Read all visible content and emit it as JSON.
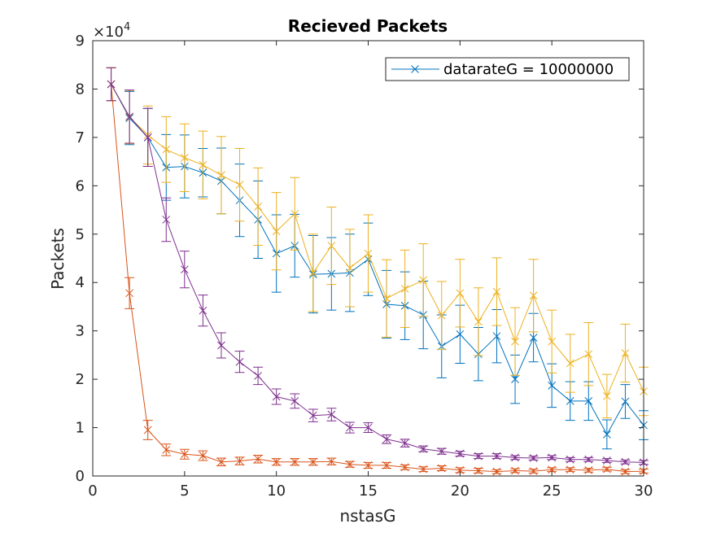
{
  "chart_data": {
    "type": "line",
    "title": "Recieved Packets",
    "xlabel": "nstasG",
    "ylabel": "Packets",
    "xlim": [
      0,
      30
    ],
    "ylim": [
      0,
      90000
    ],
    "xticks": [
      0,
      5,
      10,
      15,
      20,
      25,
      30
    ],
    "yticks": [
      0,
      10000,
      20000,
      30000,
      40000,
      50000,
      60000,
      70000,
      80000,
      90000
    ],
    "ytick_labels": [
      "0",
      "1",
      "2",
      "3",
      "4",
      "5",
      "6",
      "7",
      "8",
      "9"
    ],
    "y_exponent_label": "×10",
    "y_exponent_power": "4",
    "grid": false,
    "legend": {
      "placement": "top-right",
      "entries": [
        "datarateG = 10000000"
      ]
    },
    "x": [
      1,
      2,
      3,
      4,
      5,
      6,
      7,
      8,
      9,
      10,
      11,
      12,
      13,
      14,
      15,
      16,
      17,
      18,
      19,
      20,
      21,
      22,
      23,
      24,
      25,
      26,
      27,
      28,
      29,
      30
    ],
    "series": [
      {
        "name": "datarateG = 10000000",
        "color": "#0072BD",
        "values": [
          81000,
          74000,
          70000,
          63800,
          64000,
          62700,
          61000,
          57000,
          53000,
          46000,
          47600,
          41700,
          41800,
          42000,
          44800,
          35500,
          35200,
          33300,
          26800,
          29300,
          25200,
          28900,
          20000,
          28600,
          18700,
          15500,
          15500,
          8600,
          15400,
          10500
        ],
        "errors": [
          3400,
          5500,
          6000,
          6800,
          6500,
          5000,
          6800,
          7500,
          8000,
          8000,
          6500,
          8000,
          7500,
          8000,
          7500,
          7000,
          7000,
          7000,
          6500,
          6000,
          5500,
          5500,
          5000,
          5000,
          4500,
          4000,
          4000,
          3000,
          3500,
          3000
        ]
      },
      {
        "name": "",
        "color": "#D95319",
        "values": [
          81000,
          37800,
          9500,
          5400,
          4500,
          4200,
          2900,
          3100,
          3500,
          2900,
          2900,
          2900,
          3000,
          2400,
          2200,
          2200,
          1800,
          1400,
          1600,
          1200,
          1100,
          900,
          1100,
          1000,
          1300,
          1300,
          1200,
          1400,
          900,
          1000
        ],
        "errors": [
          3400,
          3200,
          2000,
          1200,
          1000,
          1000,
          800,
          800,
          800,
          700,
          700,
          700,
          700,
          600,
          600,
          600,
          500,
          500,
          500,
          500,
          500,
          400,
          400,
          400,
          400,
          400,
          400,
          400,
          400,
          400
        ]
      },
      {
        "name": "",
        "color": "#EDB120",
        "values": [
          81000,
          74200,
          70500,
          67500,
          65800,
          64300,
          62200,
          60200,
          55700,
          50600,
          54200,
          42000,
          47600,
          43000,
          46000,
          36700,
          38700,
          40500,
          33200,
          37800,
          31900,
          38100,
          27800,
          37300,
          27800,
          23300,
          25200,
          16500,
          25400,
          17500
        ],
        "errors": [
          3400,
          5500,
          6000,
          6800,
          7000,
          7000,
          8000,
          7500,
          8000,
          8000,
          7500,
          8000,
          8000,
          8000,
          8000,
          8000,
          8000,
          7500,
          7000,
          7000,
          7000,
          7000,
          7000,
          7500,
          6500,
          6000,
          6500,
          4500,
          6000,
          5000
        ]
      },
      {
        "name": "",
        "color": "#7E2F8E",
        "values": [
          81000,
          74300,
          70000,
          53000,
          42700,
          34200,
          27000,
          23600,
          20700,
          16400,
          15500,
          12500,
          12700,
          10000,
          10000,
          7600,
          6800,
          5600,
          5100,
          4600,
          4100,
          4100,
          3800,
          3700,
          3800,
          3400,
          3400,
          3200,
          2900,
          2800
        ],
        "errors": [
          3400,
          5500,
          6000,
          4500,
          3800,
          3200,
          2600,
          2200,
          1800,
          1600,
          1500,
          1300,
          1300,
          1100,
          1000,
          900,
          800,
          600,
          600,
          500,
          500,
          500,
          400,
          400,
          400,
          400,
          400,
          400,
          400,
          400
        ]
      }
    ]
  }
}
